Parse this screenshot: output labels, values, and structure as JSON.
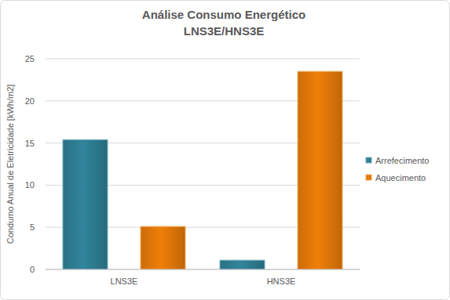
{
  "chart_data": {
    "type": "bar",
    "title": "Análise Consumo Energético",
    "subtitle": "LNS3E/HNS3E",
    "y_label": "Condumo Anual de Eletricidade [kWh/m2]",
    "categories": [
      "LNS3E",
      "HNS3E"
    ],
    "series": [
      {
        "name": "Arrefecimento",
        "color": "#31859c",
        "values": [
          15.4,
          1.1
        ]
      },
      {
        "name": "Aquecimento",
        "color": "#f07f09",
        "values": [
          5.1,
          23.5
        ]
      }
    ],
    "ylim": [
      0,
      25
    ],
    "yticks": [
      0,
      5,
      10,
      15,
      20,
      25
    ],
    "grid": true,
    "legend": "right"
  }
}
